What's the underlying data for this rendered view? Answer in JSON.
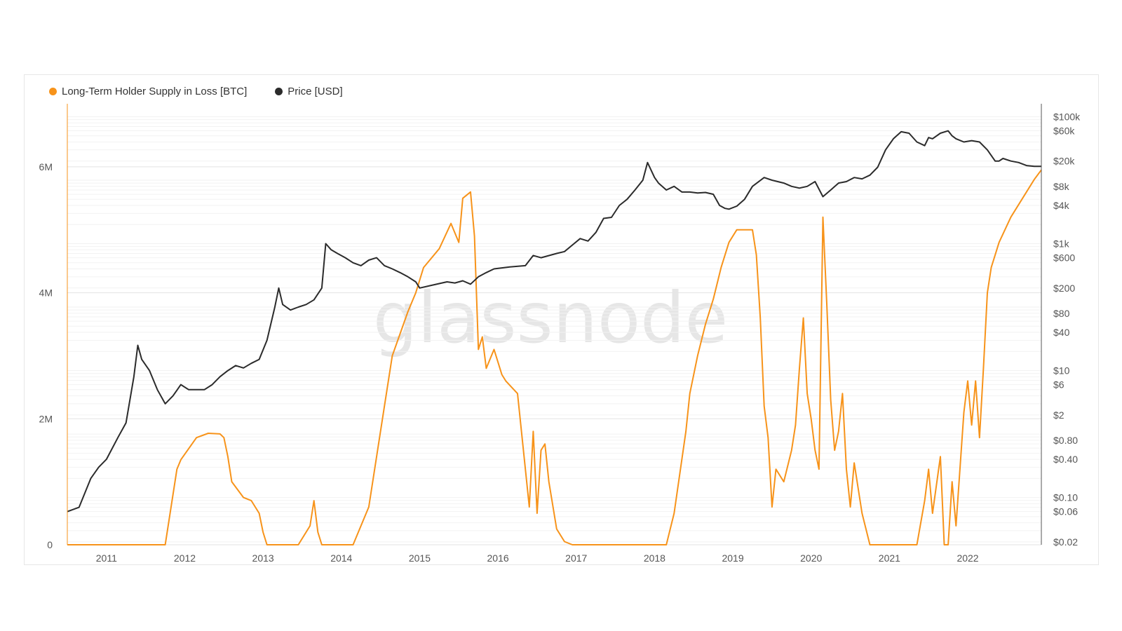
{
  "legend": {
    "supply_label": "Long-Term Holder Supply in Loss [BTC]",
    "price_label": "Price [USD]"
  },
  "watermark": "glassnode",
  "colors": {
    "supply": "#f7931a",
    "price": "#2b2b2b",
    "grid": "#ebebeb"
  },
  "chart_data": {
    "type": "line",
    "title": "",
    "xlabel": "",
    "x_ticks": [
      "2011",
      "2012",
      "2013",
      "2014",
      "2015",
      "2016",
      "2017",
      "2018",
      "2019",
      "2020",
      "2021",
      "2022"
    ],
    "x_range": [
      2010.55,
      2022.99
    ],
    "y_left": {
      "label": "Long-Term Holder Supply in Loss [BTC]",
      "range": [
        0,
        7000000
      ],
      "ticks": [
        {
          "value": 0,
          "label": "0"
        },
        {
          "value": 2000000,
          "label": "2M"
        },
        {
          "value": 4000000,
          "label": "4M"
        },
        {
          "value": 6000000,
          "label": "6M"
        }
      ]
    },
    "y_right": {
      "label": "Price [USD]",
      "scale": "log",
      "range": [
        0.018,
        160000
      ],
      "ticks": [
        {
          "value": 100000,
          "label": "$100k"
        },
        {
          "value": 60000,
          "label": "$60k"
        },
        {
          "value": 20000,
          "label": "$20k"
        },
        {
          "value": 8000,
          "label": "$8k"
        },
        {
          "value": 4000,
          "label": "$4k"
        },
        {
          "value": 1000,
          "label": "$1k"
        },
        {
          "value": 600,
          "label": "$600"
        },
        {
          "value": 200,
          "label": "$200"
        },
        {
          "value": 80,
          "label": "$80"
        },
        {
          "value": 40,
          "label": "$40"
        },
        {
          "value": 10,
          "label": "$10"
        },
        {
          "value": 6,
          "label": "$6"
        },
        {
          "value": 2,
          "label": "$2"
        },
        {
          "value": 0.8,
          "label": "$0.80"
        },
        {
          "value": 0.4,
          "label": "$0.40"
        },
        {
          "value": 0.1,
          "label": "$0.10"
        },
        {
          "value": 0.06,
          "label": "$0.06"
        },
        {
          "value": 0.02,
          "label": "$0.02"
        }
      ]
    },
    "series": [
      {
        "name": "Long-Term Holder Supply in Loss [BTC]",
        "axis": "left",
        "x": [
          2010.55,
          2011.8,
          2011.95,
          2012.0,
          2012.2,
          2012.35,
          2012.5,
          2012.55,
          2012.6,
          2012.65,
          2012.8,
          2012.9,
          2013.0,
          2013.05,
          2013.1,
          2013.5,
          2013.65,
          2013.7,
          2013.75,
          2013.8,
          2013.9,
          2014.2,
          2014.4,
          2014.6,
          2014.7,
          2014.9,
          2015.0,
          2015.1,
          2015.3,
          2015.45,
          2015.55,
          2015.6,
          2015.7,
          2015.75,
          2015.8,
          2015.85,
          2015.9,
          2016.0,
          2016.1,
          2016.15,
          2016.3,
          2016.45,
          2016.5,
          2016.55,
          2016.6,
          2016.65,
          2016.7,
          2016.8,
          2016.9,
          2017.0,
          2017.1,
          2017.2,
          2017.5,
          2017.8,
          2018.2,
          2018.3,
          2018.45,
          2018.5,
          2018.6,
          2018.7,
          2018.8,
          2018.9,
          2019.0,
          2019.1,
          2019.2,
          2019.3,
          2019.35,
          2019.4,
          2019.45,
          2019.5,
          2019.55,
          2019.6,
          2019.7,
          2019.8,
          2019.85,
          2019.9,
          2019.95,
          2020.0,
          2020.05,
          2020.1,
          2020.15,
          2020.2,
          2020.25,
          2020.3,
          2020.35,
          2020.4,
          2020.45,
          2020.5,
          2020.55,
          2020.6,
          2020.65,
          2020.7,
          2020.8,
          2020.9,
          2021.0,
          2021.2,
          2021.4,
          2021.5,
          2021.55,
          2021.6,
          2021.7,
          2021.75,
          2021.8,
          2021.85,
          2021.9,
          2022.0,
          2022.05,
          2022.1,
          2022.15,
          2022.2,
          2022.25,
          2022.3,
          2022.35,
          2022.4,
          2022.45,
          2022.6,
          2022.8,
          2022.9,
          2022.99
        ],
        "values": [
          0,
          0,
          1200000,
          1350000,
          1700000,
          1770000,
          1760000,
          1700000,
          1400000,
          1000000,
          750000,
          700000,
          500000,
          200000,
          0,
          0,
          300000,
          700000,
          200000,
          0,
          0,
          0,
          600000,
          2200000,
          3000000,
          3700000,
          4000000,
          4400000,
          4700000,
          5100000,
          4800000,
          5500000,
          5600000,
          4900000,
          3100000,
          3300000,
          2800000,
          3100000,
          2700000,
          2600000,
          2400000,
          600000,
          1800000,
          500000,
          1500000,
          1600000,
          1000000,
          250000,
          50000,
          0,
          0,
          0,
          0,
          0,
          0,
          500000,
          1800000,
          2400000,
          3000000,
          3500000,
          3900000,
          4400000,
          4800000,
          5000000,
          5000000,
          5000000,
          4600000,
          3600000,
          2200000,
          1700000,
          600000,
          1200000,
          1000000,
          1500000,
          1900000,
          2800000,
          3600000,
          2400000,
          2000000,
          1500000,
          1200000,
          5200000,
          3800000,
          2300000,
          1500000,
          1800000,
          2400000,
          1200000,
          600000,
          1300000,
          900000,
          500000,
          0,
          0,
          0,
          0,
          0,
          700000,
          1200000,
          500000,
          1400000,
          0,
          0,
          1000000,
          300000,
          2100000,
          2600000,
          1900000,
          2600000,
          1700000,
          2800000,
          4000000,
          4400000,
          4600000,
          4800000,
          5200000,
          5600000,
          5800000,
          5950000
        ]
      },
      {
        "name": "Price [USD]",
        "axis": "right",
        "x": [
          2010.55,
          2010.7,
          2010.85,
          2010.95,
          2011.05,
          2011.2,
          2011.3,
          2011.4,
          2011.45,
          2011.5,
          2011.6,
          2011.7,
          2011.8,
          2011.9,
          2012.0,
          2012.1,
          2012.2,
          2012.3,
          2012.4,
          2012.5,
          2012.6,
          2012.7,
          2012.8,
          2012.9,
          2013.0,
          2013.1,
          2013.2,
          2013.25,
          2013.3,
          2013.4,
          2013.5,
          2013.6,
          2013.7,
          2013.8,
          2013.85,
          2013.92,
          2014.0,
          2014.1,
          2014.2,
          2014.3,
          2014.4,
          2014.5,
          2014.6,
          2014.7,
          2014.8,
          2014.9,
          2015.0,
          2015.05,
          2015.2,
          2015.4,
          2015.5,
          2015.6,
          2015.7,
          2015.8,
          2015.9,
          2016.0,
          2016.2,
          2016.4,
          2016.5,
          2016.6,
          2016.8,
          2016.9,
          2017.0,
          2017.1,
          2017.2,
          2017.3,
          2017.4,
          2017.5,
          2017.6,
          2017.7,
          2017.8,
          2017.9,
          2017.96,
          2018.05,
          2018.1,
          2018.2,
          2018.3,
          2018.4,
          2018.5,
          2018.6,
          2018.7,
          2018.8,
          2018.88,
          2018.95,
          2019.0,
          2019.1,
          2019.2,
          2019.3,
          2019.45,
          2019.55,
          2019.7,
          2019.8,
          2019.9,
          2020.0,
          2020.1,
          2020.2,
          2020.3,
          2020.4,
          2020.5,
          2020.6,
          2020.7,
          2020.8,
          2020.9,
          2021.0,
          2021.1,
          2021.2,
          2021.3,
          2021.4,
          2021.5,
          2021.55,
          2021.6,
          2021.7,
          2021.8,
          2021.85,
          2021.9,
          2022.0,
          2022.1,
          2022.2,
          2022.3,
          2022.4,
          2022.45,
          2022.5,
          2022.6,
          2022.7,
          2022.8,
          2022.9,
          2022.99
        ],
        "values": [
          0.06,
          0.07,
          0.2,
          0.3,
          0.4,
          0.9,
          1.5,
          8,
          25,
          15,
          10,
          5,
          3,
          4,
          6,
          5,
          5,
          5,
          6,
          8,
          10,
          12,
          11,
          13,
          15,
          30,
          100,
          200,
          110,
          90,
          100,
          110,
          130,
          200,
          1000,
          800,
          700,
          600,
          500,
          450,
          550,
          600,
          450,
          400,
          350,
          300,
          250,
          200,
          220,
          250,
          240,
          260,
          230,
          300,
          350,
          400,
          430,
          450,
          650,
          600,
          700,
          750,
          950,
          1200,
          1100,
          1500,
          2500,
          2600,
          4000,
          5000,
          7000,
          10000,
          19000,
          11000,
          9000,
          7000,
          8000,
          6500,
          6500,
          6300,
          6400,
          6000,
          4000,
          3600,
          3500,
          3900,
          5000,
          8000,
          11000,
          10000,
          9000,
          8000,
          7500,
          8000,
          9500,
          5500,
          7000,
          9000,
          9500,
          11000,
          10500,
          12000,
          16000,
          30000,
          45000,
          58000,
          55000,
          40000,
          35000,
          47000,
          45000,
          55000,
          60000,
          50000,
          45000,
          40000,
          42000,
          40000,
          30000,
          20000,
          20000,
          22000,
          20000,
          19000,
          17000,
          16500,
          16500
        ]
      }
    ]
  }
}
